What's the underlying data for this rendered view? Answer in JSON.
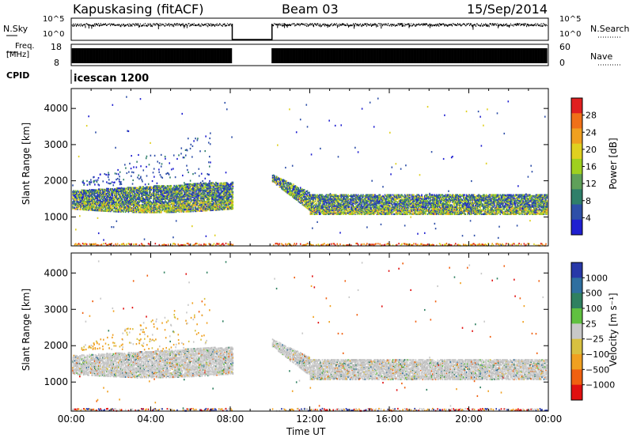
{
  "header": {
    "station": "Kapuskasing (fitACF)",
    "beam": "Beam 03",
    "date": "15/Sep/2014"
  },
  "strip_panels": {
    "nsky_label": "N.Sky",
    "nsky_ticks": [
      "10^5",
      "10^0"
    ],
    "nsearch_label": "N.Search",
    "nsearch_ticks": [
      "10^5",
      "10^0"
    ],
    "freq_label": "Freq.",
    "freq_unit": "[MHz]",
    "freq_ticks": [
      "18",
      "8"
    ],
    "nave_label": "Nave",
    "nave_ticks": [
      "60",
      "0"
    ],
    "cpid_label": "CPID",
    "cpid_value": "icescan 1200"
  },
  "colors": {
    "power_scale": [
      "#1f1fd0",
      "#2e4fa8",
      "#2f7f6a",
      "#5fa05a",
      "#9fd01f",
      "#e0d020",
      "#f0a020",
      "#f07018",
      "#e02020"
    ],
    "velocity_scale": [
      "#2838a8",
      "#2f6fa0",
      "#2f8060",
      "#60c040",
      "#c8c8c8",
      "#d8c040",
      "#f0a020",
      "#f06010",
      "#e01010"
    ]
  },
  "chart_data": [
    {
      "type": "heatmap",
      "name": "power",
      "ylabel": "Slant Range [km]",
      "xlabel": "",
      "y_ticks": [
        "1000",
        "2000",
        "3000",
        "4000"
      ],
      "ylim": [
        200,
        4550
      ],
      "xlim": [
        "00:00",
        "24:00"
      ],
      "colorbar": {
        "label": "Power [dB]",
        "ticks": [
          "4",
          "8",
          "12",
          "16",
          "20",
          "24",
          "28"
        ],
        "range": [
          0,
          32
        ]
      },
      "data_gap_utc_hours": [
        8.1,
        10.1
      ],
      "echo_bands_km": [
        {
          "start_utc": 0.0,
          "end_utc": 8.1,
          "range_low": 1250,
          "range_high": 2000
        },
        {
          "start_utc": 10.1,
          "end_utc": 24.0,
          "range_low": 1100,
          "range_high": 1650
        }
      ]
    },
    {
      "type": "heatmap",
      "name": "velocity",
      "ylabel": "Slant Range [km]",
      "xlabel": "Time UT",
      "y_ticks": [
        "1000",
        "2000",
        "3000",
        "4000"
      ],
      "x_ticks": [
        "00:00",
        "04:00",
        "08:00",
        "12:00",
        "16:00",
        "20:00",
        "00:00"
      ],
      "ylim": [
        200,
        4550
      ],
      "colorbar": {
        "label": "Velocity [m s⁻¹]",
        "ticks": [
          "1000",
          "500",
          "100",
          "25",
          "−25",
          "−100",
          "−500",
          "−1000"
        ]
      }
    }
  ]
}
